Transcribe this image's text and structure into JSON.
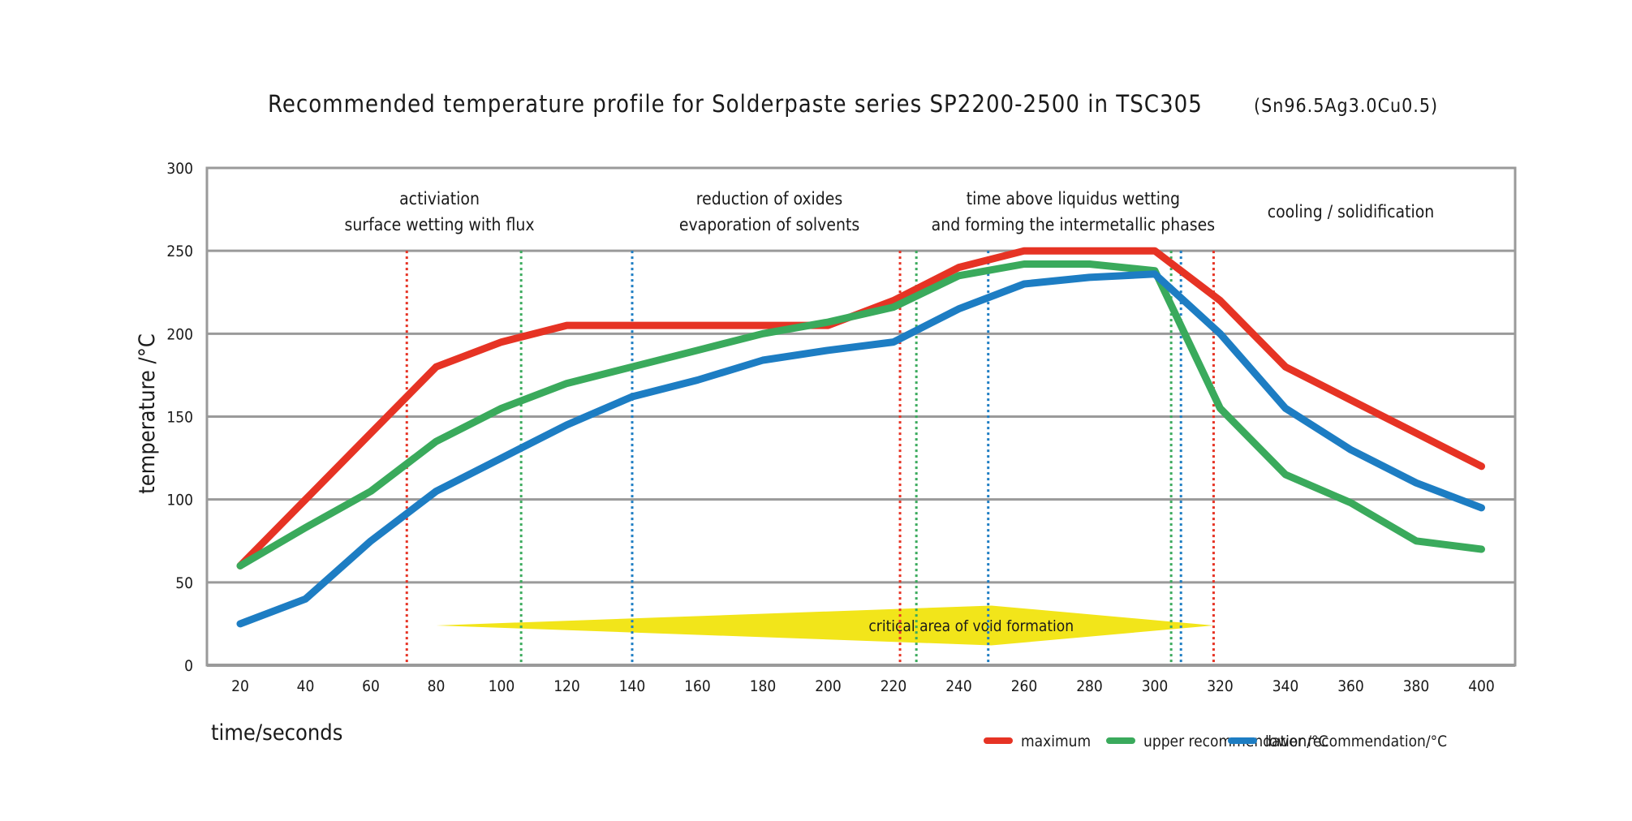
{
  "chart_data": {
    "type": "line",
    "title": "Recommended temperature profile for Solderpaste series SP2200-2500 in TSC305",
    "subtitle": "(Sn96.5Ag3.0Cu0.5)",
    "xlabel": "time/seconds",
    "ylabel": "temperature /°C",
    "xlim": [
      10,
      410
    ],
    "ylim": [
      0,
      300
    ],
    "x_ticks": [
      20,
      40,
      60,
      80,
      100,
      120,
      140,
      160,
      180,
      200,
      220,
      240,
      260,
      280,
      300,
      320,
      340,
      360,
      380,
      400
    ],
    "y_ticks": [
      0,
      50,
      100,
      150,
      200,
      250,
      300
    ],
    "grid": "horizontal",
    "legend_position": "bottom-right",
    "series": [
      {
        "name": "maximum",
        "color": "#e63324",
        "x": [
          20,
          40,
          60,
          80,
          100,
          120,
          140,
          160,
          180,
          200,
          220,
          240,
          260,
          280,
          300,
          320,
          340,
          360,
          380,
          400
        ],
        "y": [
          60,
          100,
          140,
          180,
          195,
          205,
          205,
          205,
          205,
          205,
          220,
          240,
          250,
          250,
          250,
          220,
          180,
          160,
          140,
          120
        ]
      },
      {
        "name": "upper recommendation/°C",
        "color": "#3aaa5c",
        "x": [
          20,
          40,
          60,
          80,
          100,
          120,
          140,
          160,
          180,
          200,
          220,
          240,
          260,
          280,
          300,
          320,
          340,
          360,
          380,
          400
        ],
        "y": [
          60,
          83,
          105,
          135,
          155,
          170,
          180,
          190,
          200,
          207,
          216,
          235,
          242,
          242,
          238,
          155,
          115,
          98,
          75,
          70
        ]
      },
      {
        "name": "lower recommendation/°C",
        "color": "#1d7dc3",
        "x": [
          20,
          40,
          60,
          80,
          100,
          120,
          140,
          160,
          180,
          200,
          220,
          240,
          260,
          280,
          300,
          320,
          340,
          360,
          380,
          400
        ],
        "y": [
          25,
          40,
          75,
          105,
          125,
          145,
          162,
          172,
          184,
          190,
          195,
          215,
          230,
          234,
          236,
          200,
          155,
          130,
          110,
          95
        ]
      }
    ],
    "vertical_markers": [
      {
        "x": 71,
        "color": "#e63324"
      },
      {
        "x": 106,
        "color": "#3aaa5c"
      },
      {
        "x": 140,
        "color": "#1d7dc3"
      },
      {
        "x": 222,
        "color": "#e63324"
      },
      {
        "x": 227,
        "color": "#3aaa5c"
      },
      {
        "x": 249,
        "color": "#1d7dc3"
      },
      {
        "x": 305,
        "color": "#3aaa5c"
      },
      {
        "x": 308,
        "color": "#1d7dc3"
      },
      {
        "x": 318,
        "color": "#e63324"
      }
    ],
    "phases": [
      {
        "lines": [
          "activiation",
          "surface wetting with flux"
        ],
        "x": 81
      },
      {
        "lines": [
          "reduction of oxides",
          "evaporation of solvents"
        ],
        "x": 182
      },
      {
        "lines": [
          "time above liquidus wetting",
          "and forming the intermetallic phases"
        ],
        "x": 275
      },
      {
        "lines": [
          "cooling / solidification"
        ],
        "x": 360
      }
    ],
    "void_zone": {
      "label": "critical area of void formation",
      "color": "#f2e51a",
      "x_start": 80,
      "x_peak": 250,
      "x_end": 318,
      "y_center": 24,
      "half_height": 12
    }
  }
}
